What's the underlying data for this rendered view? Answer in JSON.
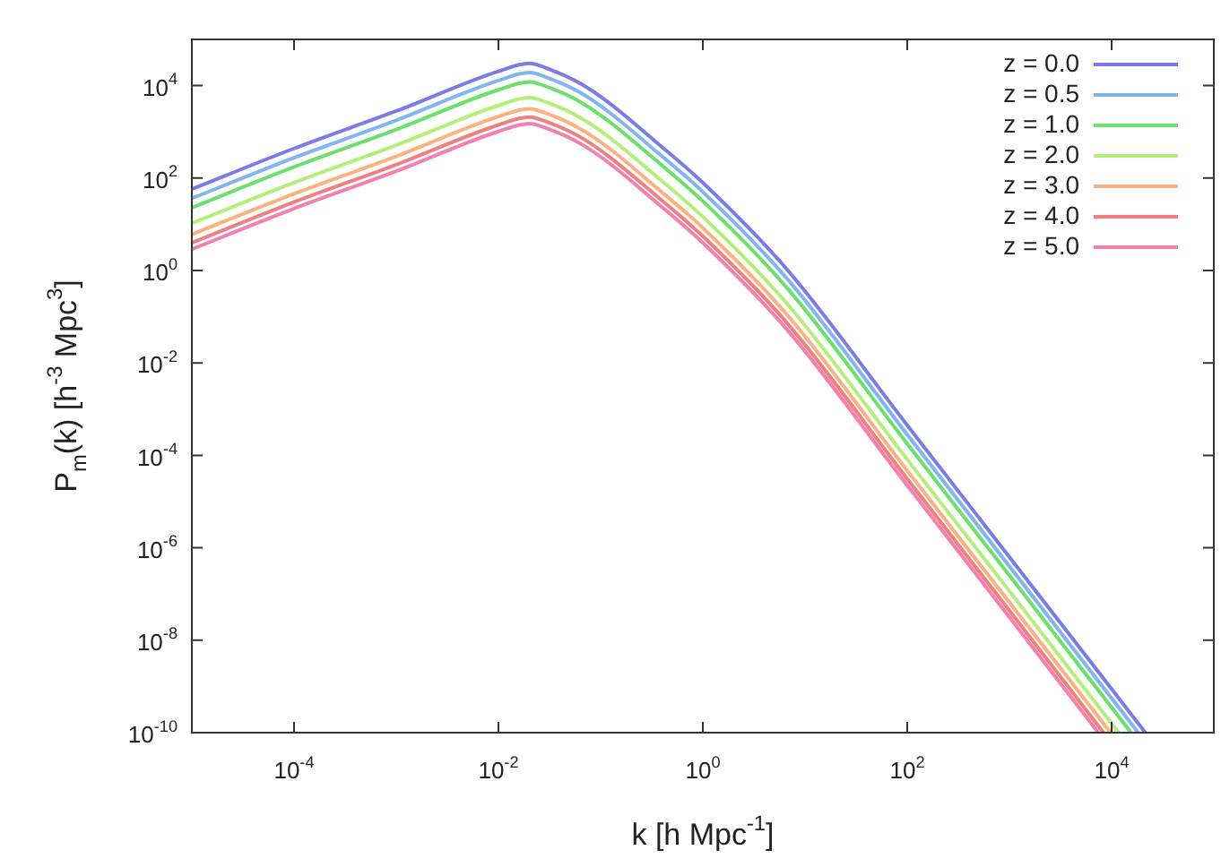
{
  "chart_data": {
    "type": "line",
    "xlabel": "k [h Mpc$^{-1}$]",
    "ylabel": "P$_{m}$(k) [h$^{-3}$ Mpc$^{3}$]",
    "log": "xy",
    "grid": false,
    "legend": "top right",
    "marker": "none",
    "line_style": "solid",
    "xlim": [
      1e-05,
      100000.0
    ],
    "ylim": [
      1e-10,
      100000.0
    ],
    "xticks": [
      {
        "value": 0.0001,
        "label": "10$^{-4}$"
      },
      {
        "value": 0.01,
        "label": "10$^{-2}$"
      },
      {
        "value": 1,
        "label": "10$^{0}$"
      },
      {
        "value": 100,
        "label": "10$^{2}$"
      },
      {
        "value": 10000,
        "label": "10$^{4}$"
      }
    ],
    "yticks": [
      {
        "value": 1e-10,
        "label": "10$^{-10}$"
      },
      {
        "value": 1e-08,
        "label": "10$^{-8}$"
      },
      {
        "value": 1e-06,
        "label": "10$^{-6}$"
      },
      {
        "value": 0.0001,
        "label": "10$^{-4}$"
      },
      {
        "value": 0.01,
        "label": "10$^{-2}$"
      },
      {
        "value": 1,
        "label": "10$^{0}$"
      },
      {
        "value": 100,
        "label": "10$^{2}$"
      },
      {
        "value": 10000,
        "label": "10$^{4}$"
      }
    ],
    "series": [
      {
        "name": "z = 0.0",
        "color": "#7b7be8",
        "x": [
          1e-05,
          0.0001,
          0.001,
          0.01,
          0.02,
          0.032,
          0.063,
          0.12,
          0.32,
          1,
          6.8,
          100,
          1000,
          21400
        ],
        "values": [
          57.5,
          437,
          2820,
          20400,
          30200,
          22400,
          11200,
          4270,
          708,
          79.4,
          1,
          0.000447,
          6.31e-07,
          1e-10
        ]
      },
      {
        "name": "z = 0.5",
        "color": "#7fb5f0",
        "x": [
          1e-05,
          0.0001,
          0.001,
          0.01,
          0.02,
          0.032,
          0.063,
          0.12,
          0.32,
          1,
          6.8,
          100,
          1000,
          18200
        ],
        "values": [
          36.3,
          275,
          1780,
          12900,
          19100,
          14100,
          7080,
          2690,
          447,
          50.1,
          0.631,
          0.000282,
          3.98e-07,
          1e-10
        ]
      },
      {
        "name": "z = 1.0",
        "color": "#6be06b",
        "x": [
          1e-05,
          0.0001,
          0.001,
          0.01,
          0.02,
          0.032,
          0.063,
          0.12,
          0.32,
          1,
          6.8,
          100,
          1000,
          15500
        ],
        "values": [
          22.9,
          174,
          1120,
          8130,
          12000,
          8910,
          4470,
          1700,
          282,
          31.6,
          0.398,
          0.000178,
          2.51e-07,
          1e-10
        ]
      },
      {
        "name": "z = 2.0",
        "color": "#b5ee7b",
        "x": [
          1e-05,
          0.0001,
          0.001,
          0.01,
          0.02,
          0.032,
          0.063,
          0.12,
          0.32,
          1,
          6.8,
          100,
          1000,
          11700
        ],
        "values": [
          10.5,
          79.4,
          513,
          3720,
          5500,
          4070,
          2040,
          776,
          129,
          14.5,
          0.182,
          8.13e-05,
          1.15e-07,
          1e-10
        ]
      },
      {
        "name": "z = 3.0",
        "color": "#ffb07f",
        "x": [
          1e-05,
          0.0001,
          0.001,
          0.01,
          0.02,
          0.032,
          0.063,
          0.12,
          0.32,
          1,
          6.8,
          100,
          1000,
          9770
        ],
        "values": [
          6.03,
          45.7,
          295,
          2140,
          3160,
          2340,
          1170,
          447,
          74.1,
          8.32,
          0.105,
          4.68e-05,
          6.61e-08,
          1e-10
        ]
      },
      {
        "name": "z = 4.0",
        "color": "#f07f7f",
        "x": [
          1e-05,
          0.0001,
          0.001,
          0.01,
          0.02,
          0.032,
          0.063,
          0.12,
          0.32,
          1,
          6.8,
          100,
          1000,
          8320
        ],
        "values": [
          3.98,
          30.2,
          195,
          1410,
          2090,
          1550,
          776,
          295,
          49,
          5.5,
          0.0692,
          3.09e-05,
          4.37e-08,
          1e-10
        ]
      },
      {
        "name": "z = 5.0",
        "color": "#f57fae",
        "x": [
          1e-05,
          0.0001,
          0.001,
          0.01,
          0.02,
          0.032,
          0.063,
          0.12,
          0.32,
          1,
          6.8,
          100,
          1000,
          7410
        ],
        "values": [
          2.88,
          21.9,
          141,
          1020,
          1510,
          1120,
          562,
          214,
          35.5,
          3.98,
          0.0501,
          2.24e-05,
          3.16e-08,
          1e-10
        ]
      }
    ]
  }
}
